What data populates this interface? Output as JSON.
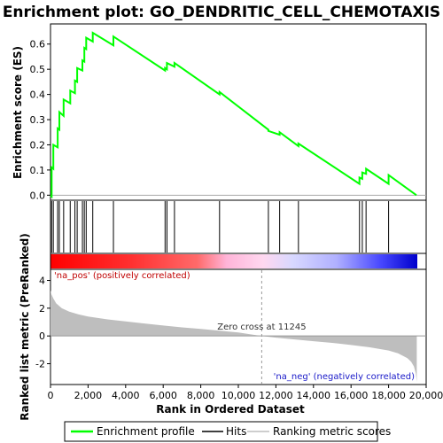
{
  "chart_data": {
    "type": "line",
    "title": "Enrichment plot: GO_DENDRITIC_CELL_CHEMOTAXIS",
    "xlabel": "Rank in Ordered Dataset",
    "ylabel_top": "Enrichment score (ES)",
    "ylabel_bottom": "Ranked list metric (PreRanked)",
    "xlim": [
      0,
      20000
    ],
    "x_ticks": [
      0,
      2000,
      4000,
      6000,
      8000,
      10000,
      12000,
      14000,
      16000,
      18000,
      20000
    ],
    "x_tick_labels": [
      "0",
      "2,000",
      "4,000",
      "6,000",
      "8,000",
      "10,000",
      "12,000",
      "14,000",
      "16,000",
      "18,000",
      "20,000"
    ],
    "es_ylim": [
      -0.02,
      0.68
    ],
    "es_ticks": [
      0.0,
      0.1,
      0.2,
      0.3,
      0.4,
      0.5,
      0.6
    ],
    "es_tick_labels": [
      "0.0",
      "0.1",
      "0.2",
      "0.3",
      "0.4",
      "0.5",
      "0.6"
    ],
    "metric_ylim": [
      -3.5,
      4.8
    ],
    "metric_ticks": [
      -2,
      0,
      2,
      4
    ],
    "metric_tick_labels": [
      "-2",
      "0",
      "2",
      "4"
    ],
    "n_genes": 19500,
    "zero_cross": 11245,
    "hits": [
      60,
      150,
      380,
      470,
      700,
      1050,
      1300,
      1420,
      1700,
      1800,
      1900,
      2250,
      3350,
      6100,
      6200,
      6600,
      9000,
      11600,
      12200,
      13200,
      16450,
      16600,
      16800,
      18000
    ],
    "enrichment_profile": {
      "x": [
        0,
        60,
        60,
        150,
        150,
        380,
        380,
        470,
        470,
        700,
        700,
        1050,
        1050,
        1300,
        1300,
        1420,
        1420,
        1700,
        1700,
        1800,
        1800,
        1900,
        1900,
        2250,
        2250,
        3350,
        3350,
        6100,
        6100,
        6200,
        6200,
        6600,
        6600,
        9000,
        9000,
        11600,
        11600,
        12200,
        12200,
        13200,
        13200,
        16450,
        16450,
        16600,
        16600,
        16800,
        16800,
        18000,
        18000,
        19480
      ],
      "y": [
        0.0,
        -0.005,
        0.11,
        0.105,
        0.2,
        0.19,
        0.265,
        0.26,
        0.33,
        0.315,
        0.38,
        0.365,
        0.415,
        0.405,
        0.455,
        0.45,
        0.505,
        0.495,
        0.535,
        0.53,
        0.585,
        0.58,
        0.625,
        0.61,
        0.645,
        0.595,
        0.63,
        0.495,
        0.505,
        0.5,
        0.525,
        0.51,
        0.525,
        0.4,
        0.41,
        0.26,
        0.255,
        0.24,
        0.25,
        0.195,
        0.205,
        0.045,
        0.07,
        0.065,
        0.09,
        0.085,
        0.105,
        0.045,
        0.08,
        0.0
      ]
    },
    "metric_curve": {
      "x": [
        0,
        50,
        150,
        300,
        600,
        1000,
        1500,
        2000,
        3000,
        4000,
        5000,
        6000,
        7000,
        8000,
        9000,
        10000,
        11245,
        12000,
        13000,
        14000,
        15000,
        16000,
        17000,
        18000,
        18500,
        19000,
        19200,
        19350,
        19450,
        19500
      ],
      "y": [
        3.3,
        3.0,
        2.7,
        2.35,
        2.0,
        1.75,
        1.55,
        1.4,
        1.2,
        1.05,
        0.9,
        0.75,
        0.62,
        0.5,
        0.38,
        0.25,
        0.0,
        -0.12,
        -0.25,
        -0.38,
        -0.5,
        -0.65,
        -0.82,
        -1.05,
        -1.25,
        -1.6,
        -1.85,
        -2.2,
        -2.7,
        -3.3
      ]
    },
    "annotations": {
      "pos": "'na_pos' (positively correlated)",
      "neg": "'na_neg' (negatively correlated)",
      "zero_cross": "Zero cross at 11245"
    },
    "legend": [
      {
        "label": "Enrichment profile",
        "color": "#00ff00"
      },
      {
        "label": "Hits",
        "color": "#000000"
      },
      {
        "label": "Ranking metric scores",
        "color": "#bebebe"
      }
    ],
    "colors": {
      "profile": "#00ff00",
      "metric_fill": "#bebebe",
      "zero_line": "#999999"
    }
  }
}
